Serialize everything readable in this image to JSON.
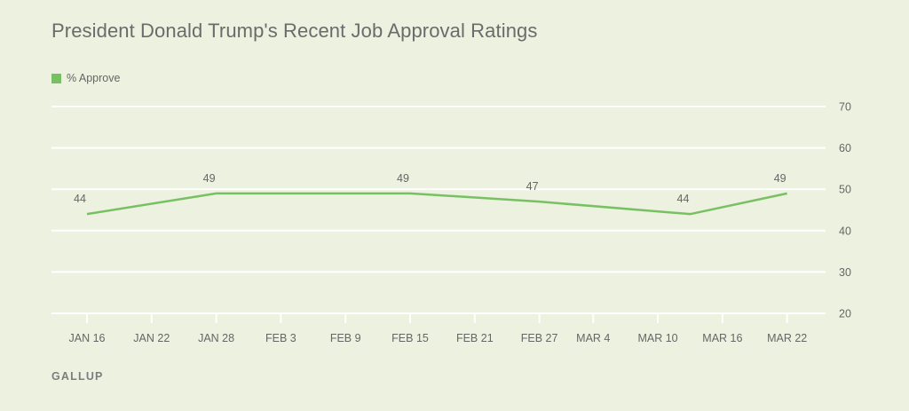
{
  "title": "President Donald Trump's Recent Job Approval Ratings",
  "source": "GALLUP",
  "legend": {
    "label": "% Approve"
  },
  "colors": {
    "series": "#78c163",
    "grid": "#ffffff",
    "text": "#666666",
    "background": "#edf1e0"
  },
  "chart_data": {
    "type": "line",
    "title": "President Donald Trump's Recent Job Approval Ratings",
    "xlabel": "",
    "ylabel": "",
    "ylim": [
      20,
      70
    ],
    "yticks": [
      20,
      30,
      40,
      50,
      60,
      70
    ],
    "y_axis_side": "right",
    "grid": true,
    "legend_position": "top-left",
    "x_ticks": [
      "JAN 16",
      "JAN 22",
      "JAN 28",
      "FEB 3",
      "FEB 9",
      "FEB 15",
      "FEB 21",
      "FEB 27",
      "MAR 4",
      "MAR 10",
      "MAR 16",
      "MAR 22"
    ],
    "series": [
      {
        "name": "% Approve",
        "points": [
          {
            "x": "JAN 16",
            "y": 44
          },
          {
            "x": "JAN 28",
            "y": 49
          },
          {
            "x": "FEB 15",
            "y": 49
          },
          {
            "x": "FEB 27",
            "y": 47
          },
          {
            "x": "MAR 13",
            "y": 44
          },
          {
            "x": "MAR 22",
            "y": 49
          }
        ]
      }
    ]
  }
}
